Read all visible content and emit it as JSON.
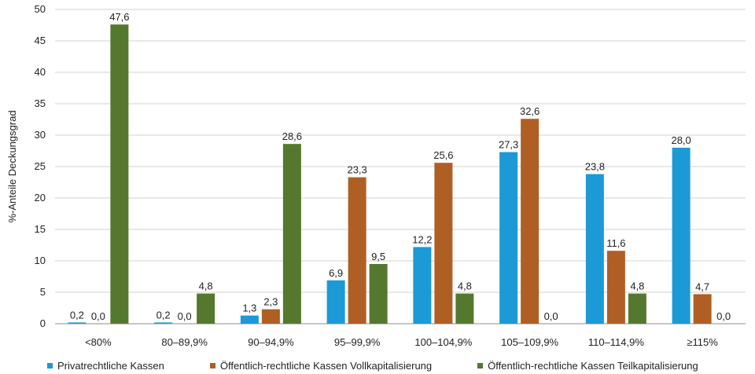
{
  "chart_data": {
    "type": "bar",
    "title": "",
    "xlabel": "",
    "ylabel": "%-Anteile Deckungsgrad",
    "ylim": [
      0,
      50
    ],
    "yticks": [
      0,
      5,
      10,
      15,
      20,
      25,
      30,
      35,
      40,
      45,
      50
    ],
    "grid": true,
    "legend_position": "bottom",
    "categories": [
      "<80%",
      "80–89,9%",
      "90–94,9%",
      "95–99,9%",
      "100–104,9%",
      "105–109,9%",
      "110–114,9%",
      "≥115%"
    ],
    "series": [
      {
        "name": "Privatrechtliche Kassen",
        "color": "#1b9ad6",
        "values": [
          0.2,
          0.2,
          1.3,
          6.9,
          12.2,
          27.3,
          23.8,
          28.0
        ],
        "labels": [
          "0,2",
          "0,2",
          "1,3",
          "6,9",
          "12,2",
          "27,3",
          "23,8",
          "28,0"
        ]
      },
      {
        "name": "Öffentlich-rechtliche Kassen Vollkapitalisierung",
        "color": "#b05f24",
        "values": [
          0.0,
          0.0,
          2.3,
          23.3,
          25.6,
          32.6,
          11.6,
          4.7
        ],
        "labels": [
          "0,0",
          "0,0",
          "2,3",
          "23,3",
          "25,6",
          "32,6",
          "11,6",
          "4,7"
        ]
      },
      {
        "name": "Öffentlich-rechtliche Kassen Teilkapitalisierung",
        "color": "#55782f",
        "values": [
          47.6,
          4.8,
          28.6,
          9.5,
          4.8,
          0.0,
          4.8,
          0.0
        ],
        "labels": [
          "47,6",
          "4,8",
          "28,6",
          "9,5",
          "4,8",
          "0,0",
          "4,8",
          "0,0"
        ]
      }
    ]
  }
}
